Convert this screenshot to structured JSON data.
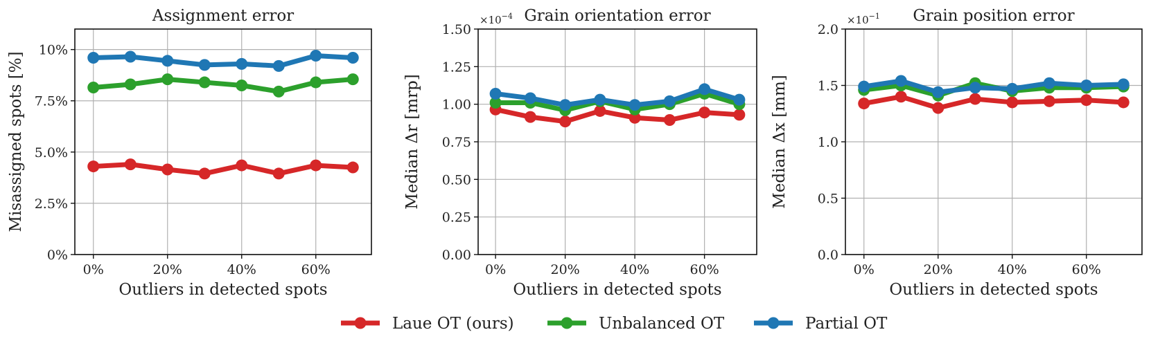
{
  "chart_data": [
    {
      "type": "line",
      "title": "Assignment error",
      "xlabel": "Outliers in detected spots",
      "ylabel": "Misassigned spots [%]",
      "exponent": "",
      "x": [
        0,
        10,
        20,
        30,
        40,
        50,
        60,
        70
      ],
      "xticks": [
        0,
        20,
        40,
        60
      ],
      "xtick_labels": [
        "0%",
        "20%",
        "40%",
        "60%"
      ],
      "xlim": [
        -5,
        75
      ],
      "yticks": [
        0,
        2.5,
        5.0,
        7.5,
        10
      ],
      "ytick_labels": [
        "0%",
        "2.5%",
        "5.0%",
        "7.5%",
        "10%"
      ],
      "ylim": [
        0,
        11
      ],
      "grid": true,
      "series": [
        {
          "name": "Laue OT (ours)",
          "color": "#d62728",
          "values": [
            4.3,
            4.4,
            4.15,
            3.95,
            4.35,
            3.95,
            4.35,
            4.25
          ]
        },
        {
          "name": "Unbalanced OT",
          "color": "#2ca02c",
          "values": [
            8.15,
            8.3,
            8.55,
            8.4,
            8.25,
            7.95,
            8.4,
            8.55
          ]
        },
        {
          "name": "Partial OT",
          "color": "#1f77b4",
          "values": [
            9.6,
            9.65,
            9.45,
            9.25,
            9.3,
            9.2,
            9.7,
            9.6
          ]
        }
      ]
    },
    {
      "type": "line",
      "title": "Grain orientation error",
      "xlabel": "Outliers in detected spots",
      "ylabel": "Median Δr [mrp]",
      "exponent": "×10",
      "exponent_power": "−4",
      "x": [
        0,
        10,
        20,
        30,
        40,
        50,
        60,
        70
      ],
      "xticks": [
        0,
        20,
        40,
        60
      ],
      "xtick_labels": [
        "0%",
        "20%",
        "40%",
        "60%"
      ],
      "xlim": [
        -5,
        75
      ],
      "yticks": [
        0,
        0.25,
        0.5,
        0.75,
        1.0,
        1.25,
        1.5
      ],
      "ytick_labels": [
        "0.00",
        "0.25",
        "0.50",
        "0.75",
        "1.00",
        "1.25",
        "1.50"
      ],
      "ylim": [
        0,
        1.5
      ],
      "grid": true,
      "series": [
        {
          "name": "Laue OT (ours)",
          "color": "#d62728",
          "values": [
            0.965,
            0.915,
            0.885,
            0.955,
            0.91,
            0.895,
            0.945,
            0.93
          ]
        },
        {
          "name": "Unbalanced OT",
          "color": "#2ca02c",
          "values": [
            1.01,
            1.01,
            0.96,
            1.02,
            0.965,
            1.0,
            1.07,
            1.0
          ]
        },
        {
          "name": "Partial OT",
          "color": "#1f77b4",
          "values": [
            1.07,
            1.04,
            0.995,
            1.03,
            0.995,
            1.02,
            1.1,
            1.03
          ]
        }
      ]
    },
    {
      "type": "line",
      "title": "Grain position error",
      "xlabel": "Outliers in detected spots",
      "ylabel": "Median Δx [mm]",
      "exponent": "×10",
      "exponent_power": "−1",
      "x": [
        0,
        10,
        20,
        30,
        40,
        50,
        60,
        70
      ],
      "xticks": [
        0,
        20,
        40,
        60
      ],
      "xtick_labels": [
        "0%",
        "20%",
        "40%",
        "60%"
      ],
      "xlim": [
        -5,
        75
      ],
      "yticks": [
        0,
        0.5,
        1.0,
        1.5,
        2.0
      ],
      "ytick_labels": [
        "0.0",
        "0.5",
        "1.0",
        "1.5",
        "2.0"
      ],
      "ylim": [
        0,
        2.0
      ],
      "grid": true,
      "series": [
        {
          "name": "Laue OT (ours)",
          "color": "#d62728",
          "values": [
            1.34,
            1.4,
            1.3,
            1.38,
            1.35,
            1.36,
            1.37,
            1.35
          ]
        },
        {
          "name": "Unbalanced OT",
          "color": "#2ca02c",
          "values": [
            1.46,
            1.5,
            1.41,
            1.52,
            1.45,
            1.48,
            1.48,
            1.49
          ]
        },
        {
          "name": "Partial OT",
          "color": "#1f77b4",
          "values": [
            1.49,
            1.54,
            1.44,
            1.48,
            1.47,
            1.52,
            1.5,
            1.51
          ]
        }
      ]
    }
  ],
  "legend": {
    "placement": "bottom-center",
    "entries": [
      {
        "label": "Laue OT (ours)",
        "color": "#d62728"
      },
      {
        "label": "Unbalanced OT",
        "color": "#2ca02c"
      },
      {
        "label": "Partial OT",
        "color": "#1f77b4"
      }
    ]
  }
}
